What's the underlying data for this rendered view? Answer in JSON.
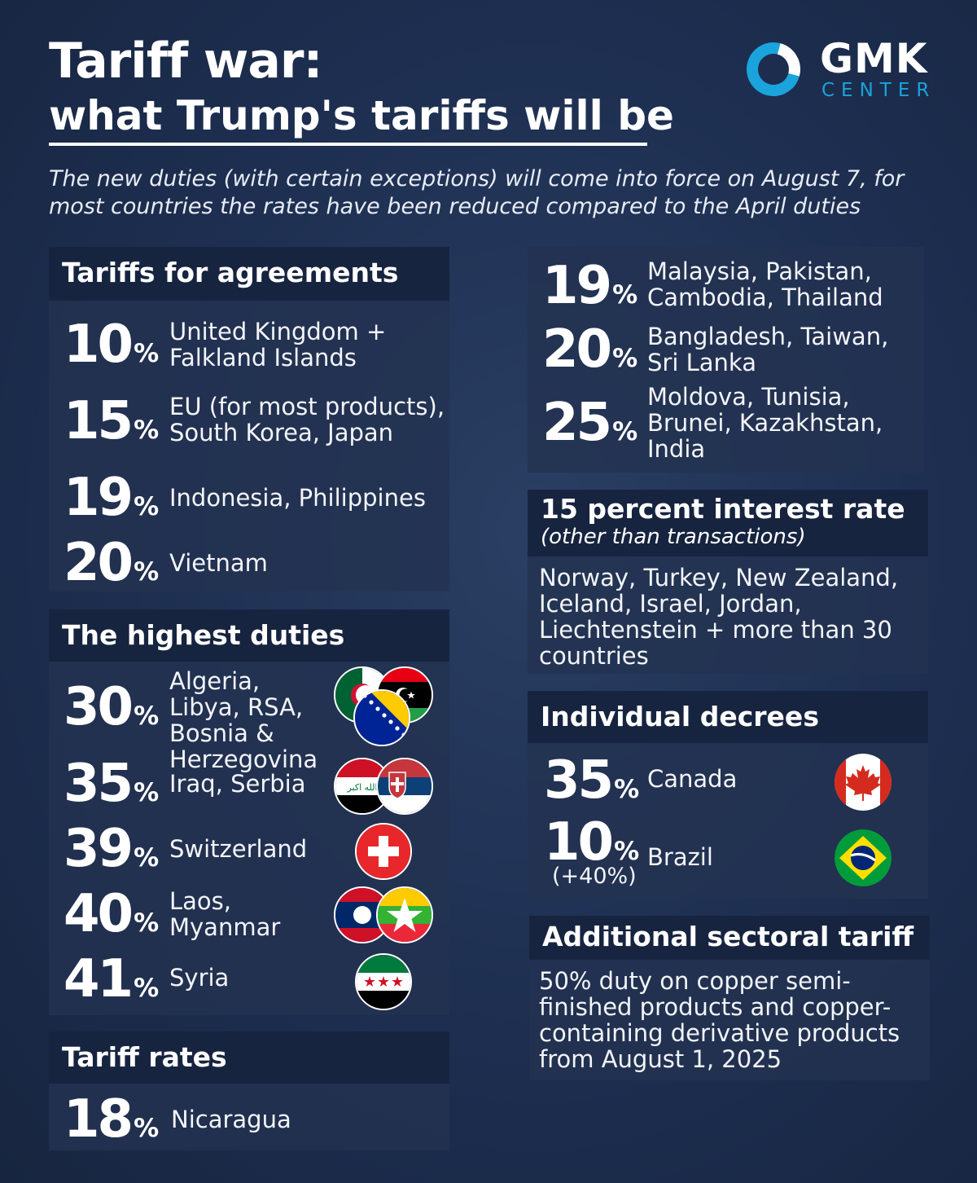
{
  "header": {
    "title": "Tariff war:",
    "subtitle": "what Trump's tariffs will be",
    "intro": "The new duties (with certain exceptions) will come into force on August 7, for most countries the rates have been reduced compared to the April duties"
  },
  "logo": {
    "name": "GMK",
    "tagline": "CENTER",
    "accent": "#1ba3dc"
  },
  "agreements": {
    "heading": "Tariffs for agreements",
    "rows": [
      {
        "rate": "10",
        "countries": "United Kingdom + Falkland Islands"
      },
      {
        "rate": "15",
        "countries": "EU (for most products), South Korea, Japan"
      },
      {
        "rate": "19",
        "countries": "Indonesia, Philippines"
      },
      {
        "rate": "20",
        "countries": "Vietnam"
      }
    ]
  },
  "agreements_cont": {
    "rows": [
      {
        "rate": "19",
        "countries": "Malaysia, Pakistan, Cambodia, Thailand"
      },
      {
        "rate": "20",
        "countries": "Bangladesh, Taiwan, Sri Lanka"
      },
      {
        "rate": "25",
        "countries": "Moldova, Tunisia, Brunei, Kazakhstan, India"
      }
    ]
  },
  "highest": {
    "heading": "The highest duties",
    "rows": [
      {
        "rate": "30",
        "countries": "Algeria, Libya, RSA, Bosnia & Herzegovina",
        "flags": [
          "algeria-flag-icon",
          "libya-flag-icon",
          "bosnia-flag-icon"
        ]
      },
      {
        "rate": "35",
        "countries": "Iraq, Serbia",
        "flags": [
          "iraq-flag-icon",
          "serbia-flag-icon"
        ]
      },
      {
        "rate": "39",
        "countries": "Switzerland",
        "flags": [
          "switzerland-flag-icon"
        ]
      },
      {
        "rate": "40",
        "countries": "Laos, Myanmar",
        "flags": [
          "laos-flag-icon",
          "myanmar-flag-icon"
        ]
      },
      {
        "rate": "41",
        "countries": "Syria",
        "flags": [
          "syria-flag-icon"
        ]
      }
    ]
  },
  "tariff_rates": {
    "heading": "Tariff rates",
    "rows": [
      {
        "rate": "18",
        "countries": "Nicaragua"
      }
    ]
  },
  "interest": {
    "heading": "15 percent interest rate",
    "subheading": "(other than transactions)",
    "text": "Norway, Turkey, New Zealand, Iceland, Israel, Jordan, Liechtenstein + more than 30 countries"
  },
  "decrees": {
    "heading": "Individual decrees",
    "rows": [
      {
        "rate": "35",
        "countries": "Canada",
        "flags": [
          "canada-flag-icon"
        ]
      },
      {
        "rate": "10",
        "note": "(+40%)",
        "countries": "Brazil",
        "flags": [
          "brazil-flag-icon"
        ]
      }
    ]
  },
  "sectoral": {
    "heading": "Additional sectoral tariff",
    "text": "50% duty on copper semi-finished products and copper-containing derivative products from August 1, 2025"
  },
  "percent_sign": "%",
  "iraq_flag_script": "الله اكبر"
}
